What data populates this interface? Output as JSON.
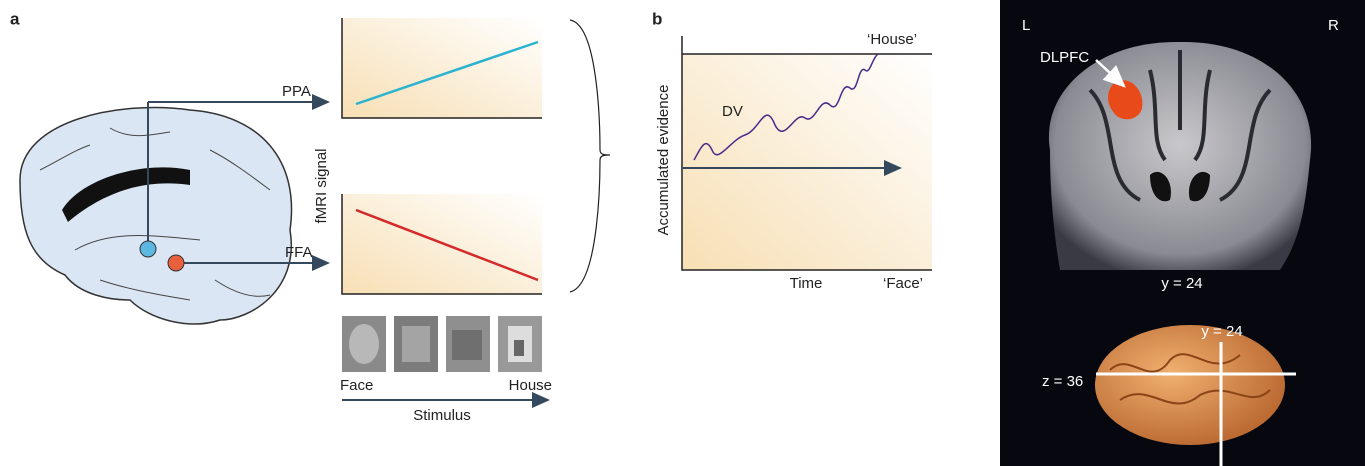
{
  "panel_a": {
    "label": "a",
    "regions": [
      "PPA",
      "FFA"
    ],
    "y_axis_label": "fMRI signal",
    "stimulus": {
      "start": "Face",
      "end": "House",
      "label": "Stimulus"
    }
  },
  "panel_b": {
    "label": "b",
    "top_bound": "‘House’",
    "bottom_bound": "‘Face’",
    "curve_label": "DV",
    "y_axis_label": "Accumulated evidence",
    "x_axis_label": "Time"
  },
  "panel_c": {
    "left": "L",
    "right": "R",
    "region": "DLPFC",
    "coronal_slice": "y = 24",
    "sagittal_y": "y = 24",
    "sagittal_z": "z = 36"
  }
}
